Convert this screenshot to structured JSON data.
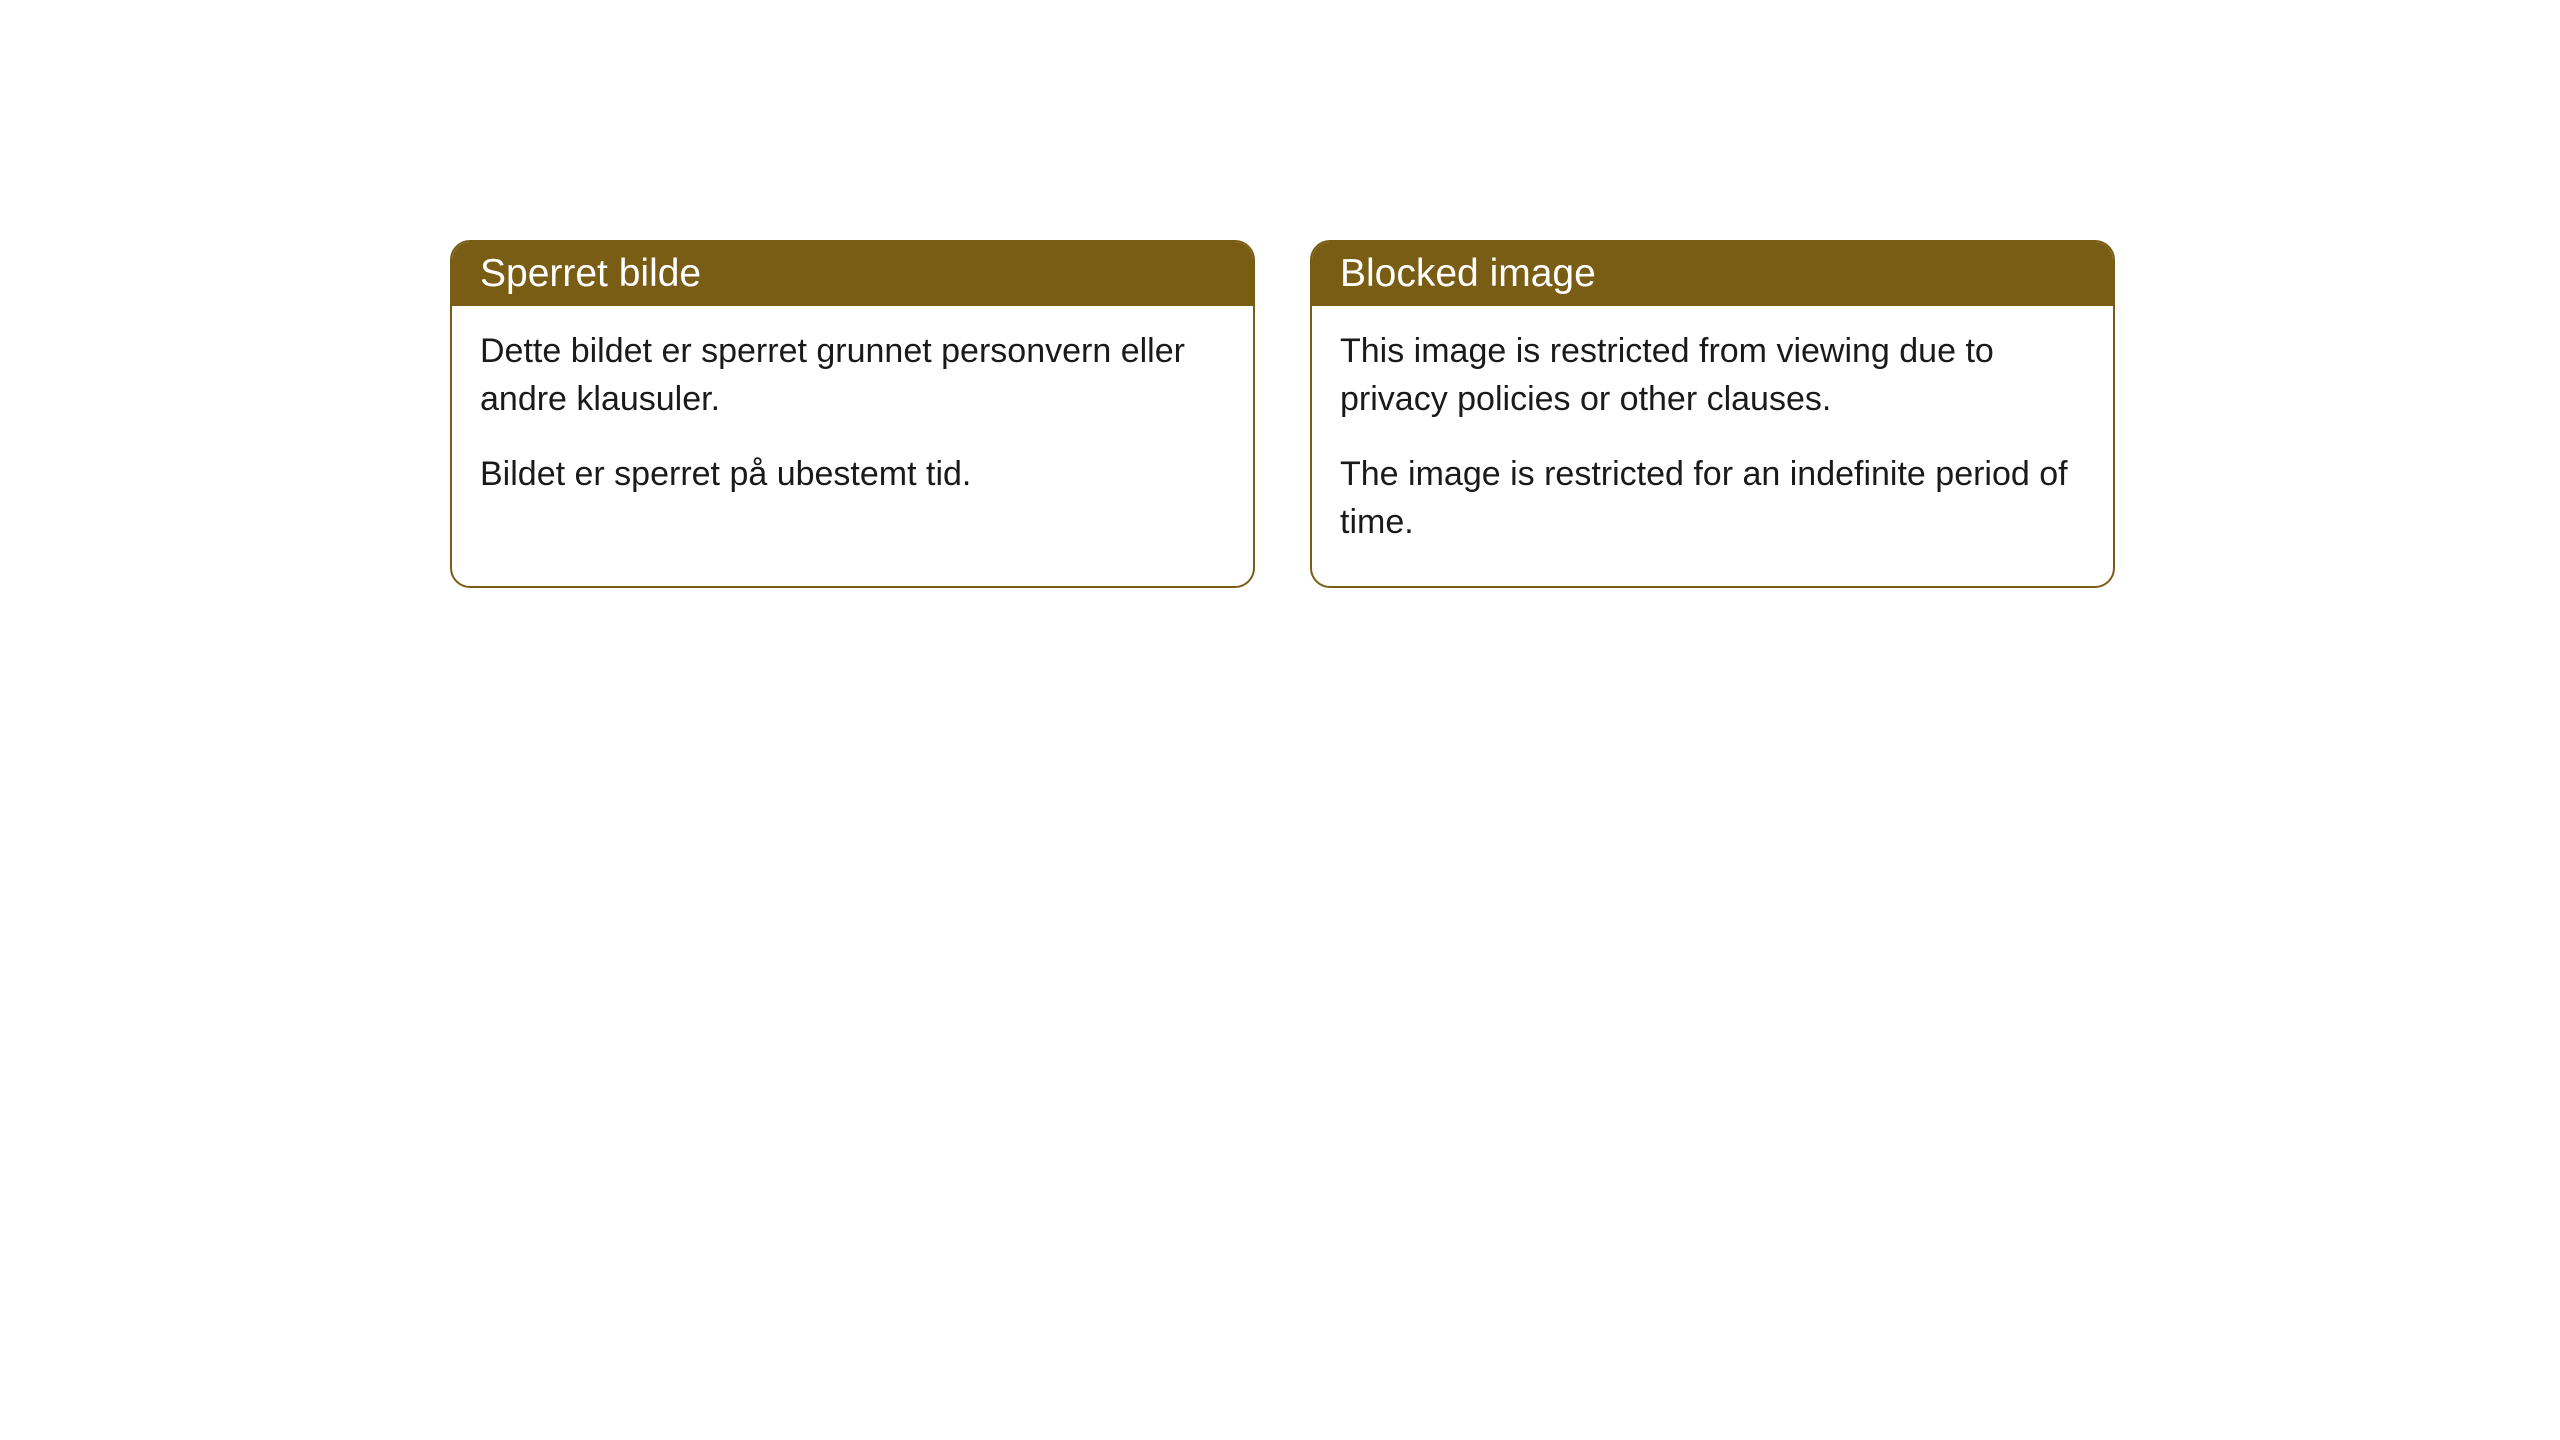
{
  "cards": [
    {
      "title": "Sperret bilde",
      "paragraph1": "Dette bildet er sperret grunnet personvern eller andre klausuler.",
      "paragraph2": "Bildet er sperret på ubestemt tid."
    },
    {
      "title": "Blocked image",
      "paragraph1": "This image is restricted from viewing due to privacy policies or other clauses.",
      "paragraph2": "The image is restricted for an indefinite period of time."
    }
  ],
  "styling": {
    "header_background_color": "#7a5d14",
    "header_text_color": "#ffffff",
    "border_color": "#7a5d14",
    "body_text_color": "#1a1a1a",
    "card_background_color": "#ffffff",
    "border_radius": "20px",
    "header_fontsize": 39,
    "body_fontsize": 34
  }
}
